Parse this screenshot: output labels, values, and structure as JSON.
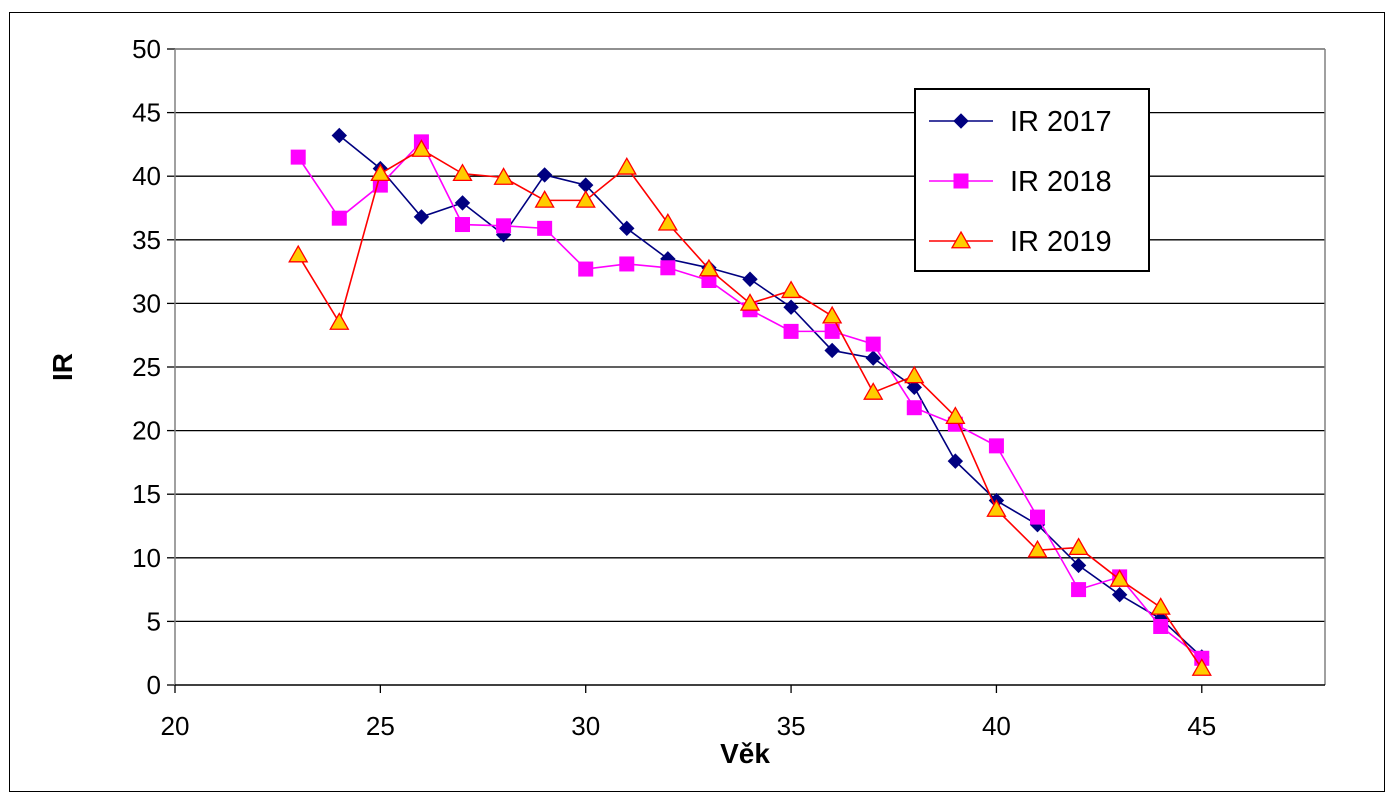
{
  "chart_data": {
    "type": "line",
    "title": "",
    "xlabel": "Věk",
    "ylabel": "IR",
    "xlim": [
      20,
      48
    ],
    "ylim": [
      0,
      50
    ],
    "xticks": [
      20,
      25,
      30,
      35,
      40,
      45
    ],
    "yticks": [
      0,
      5,
      10,
      15,
      20,
      25,
      30,
      35,
      40,
      45,
      50
    ],
    "grid": "horizontal",
    "legend_position": "top-right",
    "series": [
      {
        "name": "IR 2017",
        "color": "#000080",
        "marker": "diamond",
        "x": [
          24,
          25,
          26,
          27,
          28,
          29,
          30,
          31,
          32,
          33,
          34,
          35,
          36,
          37,
          38,
          39,
          40,
          41,
          42,
          43,
          44,
          45
        ],
        "y": [
          43.2,
          40.6,
          36.8,
          37.9,
          35.4,
          40.1,
          39.3,
          35.9,
          33.5,
          32.8,
          31.9,
          29.7,
          26.3,
          25.7,
          23.4,
          17.6,
          14.5,
          12.6,
          9.4,
          7.1,
          5.2,
          2.2
        ]
      },
      {
        "name": "IR 2018",
        "color": "#FF00FF",
        "marker": "square",
        "x": [
          23,
          24,
          25,
          26,
          27,
          28,
          29,
          30,
          31,
          32,
          33,
          34,
          35,
          36,
          37,
          38,
          39,
          40,
          41,
          42,
          43,
          44,
          45
        ],
        "y": [
          41.5,
          36.7,
          39.3,
          42.7,
          36.2,
          36.1,
          35.9,
          32.7,
          33.1,
          32.8,
          31.8,
          29.5,
          27.8,
          27.8,
          26.8,
          21.8,
          20.5,
          18.8,
          13.2,
          7.5,
          8.5,
          4.6,
          2.1
        ]
      },
      {
        "name": "IR 2019",
        "color": "#FF0000",
        "marker": "triangle",
        "markerFill": "#FFCC00",
        "x": [
          23,
          24,
          25,
          26,
          27,
          28,
          29,
          30,
          31,
          32,
          33,
          34,
          35,
          36,
          37,
          38,
          39,
          40,
          41,
          42,
          43,
          44,
          45
        ],
        "y": [
          33.8,
          28.5,
          40.2,
          42.1,
          40.2,
          39.9,
          38.1,
          38.1,
          40.7,
          36.3,
          32.7,
          30.0,
          31.0,
          29.0,
          23.0,
          24.3,
          21.1,
          13.8,
          10.6,
          10.8,
          8.3,
          6.1,
          1.3
        ]
      }
    ]
  }
}
